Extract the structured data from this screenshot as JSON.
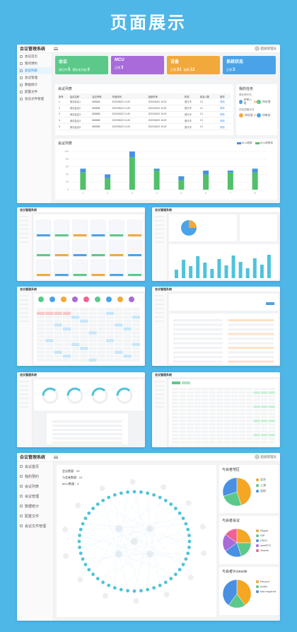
{
  "hero_title": "页面展示",
  "app": {
    "name": "会议管理系统",
    "user": "超级管理员"
  },
  "sidebar": [
    {
      "label": "会议首页"
    },
    {
      "label": "我的预约"
    },
    {
      "label": "会议列表"
    },
    {
      "label": "会议管理"
    },
    {
      "label": "数据统计"
    },
    {
      "label": "配置文件"
    },
    {
      "label": "会议文件管理"
    }
  ],
  "stats": [
    {
      "title": "会议",
      "l1": "进行中",
      "v1": "5",
      "l2": "预约未开始",
      "v2": "3",
      "color": "#5cc98b"
    },
    {
      "title": "MCU",
      "l1": "正常",
      "v1": "3",
      "l2": "",
      "v2": "",
      "color": "#a86bd9"
    },
    {
      "title": "设备",
      "l1": "正常",
      "v1": "21",
      "l2": "故障",
      "v2": "12",
      "color": "#f2a93b"
    },
    {
      "title": "系统状态",
      "l1": "正常",
      "v1": "3",
      "l2": "",
      "v2": "",
      "color": "#4aa3e8"
    }
  ],
  "meeting_list": {
    "title": "会议列表",
    "headers": [
      "序号",
      "会议名称",
      "会议号码",
      "开始时间",
      "结束时间",
      "状态",
      "参会人数",
      "操作"
    ],
    "rows": [
      [
        "1",
        "测试会议1",
        "888886",
        "2020/06/22 14:20",
        "2020/06/22 16:20",
        "进行中",
        "13",
        "详情"
      ],
      [
        "2",
        "测试会议2",
        "888888",
        "2020/06/22 14:20",
        "2020/06/22 16:20",
        "进行中",
        "13",
        "详情"
      ],
      [
        "3",
        "测试会议3",
        "888888",
        "2020/06/22 14:20",
        "2020/06/22 16:20",
        "进行中",
        "13",
        "详情"
      ],
      [
        "4",
        "测试会议4",
        "888888",
        "2020/06/22 14:20",
        "2020/06/22 16:20",
        "进行中",
        "13",
        "详情"
      ],
      [
        "5",
        "测试会议5",
        "888888",
        "2020/06/22 14:20",
        "2020/06/22 16:20",
        "进行中",
        "13",
        "详情"
      ]
    ]
  },
  "todo": {
    "title": "我的任务",
    "g1": "需处理任务",
    "items1": [
      {
        "label": "待审入账",
        "num": "23"
      },
      {
        "label": "待处理",
        "num": ""
      }
    ],
    "g2": "预定提醒任务",
    "items2": [
      {
        "label": "待处理",
        "num": "9"
      },
      {
        "label": "待审核",
        "num": ""
      }
    ]
  },
  "bar_section": {
    "title": "会议列表",
    "legend": [
      "MCU故障",
      "MCU故障率"
    ]
  },
  "chart_data": {
    "type": "bar",
    "categories": [
      "1",
      "2",
      "3",
      "4",
      "5",
      "6",
      "7",
      "8"
    ],
    "series": [
      {
        "name": "MCU故障",
        "values": [
          45,
          30,
          85,
          50,
          25,
          40,
          45,
          45
        ],
        "color": "#52c06a"
      },
      {
        "name": "MCU故障率",
        "values": [
          10,
          10,
          15,
          5,
          10,
          10,
          5,
          10
        ],
        "color": "#4a90e2"
      }
    ],
    "ylim": [
      0,
      100
    ],
    "yticks": [
      "0",
      "20",
      "40",
      "60",
      "80",
      "100"
    ]
  },
  "net": {
    "l1": "会议数量：23",
    "l2": "与会者数量：21",
    "l3": "MCU数量：3"
  },
  "pies": [
    {
      "title": "与会者地区",
      "slices": [
        {
          "name": "北京",
          "value": 45,
          "color": "#f5a623"
        },
        {
          "name": "上海",
          "value": 25,
          "color": "#5cc98b"
        },
        {
          "name": "深圳",
          "value": 30,
          "color": "#4a90e2"
        }
      ]
    },
    {
      "title": "与会者会议",
      "slices": [
        {
          "name": "Skype",
          "value": 25,
          "color": "#f5a623"
        },
        {
          "name": "SIP",
          "value": 20,
          "color": "#5cc98b"
        },
        {
          "name": "H323",
          "value": 20,
          "color": "#4a90e2"
        },
        {
          "name": "webRTC",
          "value": 20,
          "color": "#a86bd9"
        },
        {
          "name": "Teams",
          "value": 15,
          "color": "#f06292"
        }
      ]
    },
    {
      "title": "与会者Vconsole",
      "slices": [
        {
          "name": "Record",
          "value": 40,
          "color": "#f5a623"
        },
        {
          "name": "Audio",
          "value": 20,
          "color": "#5cc98b"
        },
        {
          "name": "Not required",
          "value": 40,
          "color": "#4a90e2"
        }
      ]
    }
  ]
}
